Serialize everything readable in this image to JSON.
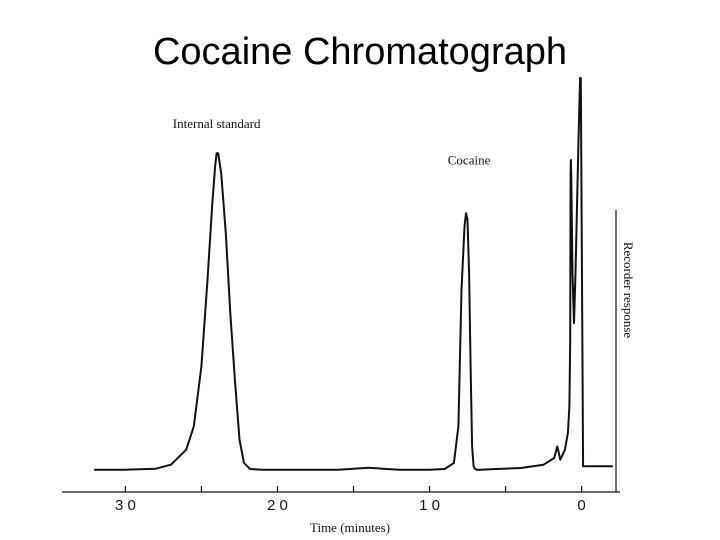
{
  "slide": {
    "title": "Cocaine Chromatograph"
  },
  "chart_data": {
    "type": "line",
    "title": "",
    "xlabel": "Time (minutes)",
    "ylabel": "Recorder response",
    "x_direction": "reversed",
    "xlim": [
      32,
      -2
    ],
    "ylim": [
      0,
      100
    ],
    "x_ticks": [
      30,
      20,
      10,
      0
    ],
    "x_tick_labels": [
      "3 0",
      "2 0",
      "1 0",
      "0"
    ],
    "grid": false,
    "legend": "none",
    "annotations": [
      {
        "text": "Internal standard",
        "x": 24,
        "y": 100
      },
      {
        "text": "Cocaine",
        "x": 7.4,
        "y": 89
      }
    ],
    "series": [
      {
        "x": [
          32,
          30,
          28,
          27,
          26,
          25.5,
          25,
          24.6,
          24.3,
          24.1,
          24.0,
          23.9,
          23.7,
          23.4,
          23.1,
          22.8,
          22.5,
          22.2,
          21.8,
          21,
          20,
          18,
          16,
          14.5,
          14,
          13.5,
          12,
          10,
          9,
          8.4,
          8.1,
          7.9,
          7.7,
          7.6,
          7.5,
          7.4,
          7.3,
          7.2,
          7.1,
          7.0,
          6.9,
          6.6,
          6,
          4,
          2.5,
          1.8,
          1.6,
          1.4,
          1.1,
          0.9,
          0.8,
          0.75,
          0.72,
          0.7,
          0.68,
          0.6,
          0.5,
          0.4,
          0.3,
          0.2,
          0.1,
          0.05,
          -0.1,
          -2
        ],
        "y": [
          1,
          1,
          1.3,
          2.5,
          7,
          14,
          32,
          58,
          80,
          92,
          96,
          96,
          90,
          72,
          48,
          28,
          10,
          3,
          1.2,
          1,
          1,
          1,
          1,
          1.4,
          1.6,
          1.4,
          1,
          1,
          1.2,
          3,
          14,
          55,
          74,
          78,
          76,
          60,
          32,
          8,
          2,
          1.2,
          1,
          1,
          1.1,
          1.5,
          2.5,
          4.5,
          8,
          4,
          7,
          12,
          20,
          40,
          90,
          94,
          90,
          60,
          45,
          60,
          80,
          100,
          130,
          150,
          2,
          2
        ]
      }
    ]
  }
}
